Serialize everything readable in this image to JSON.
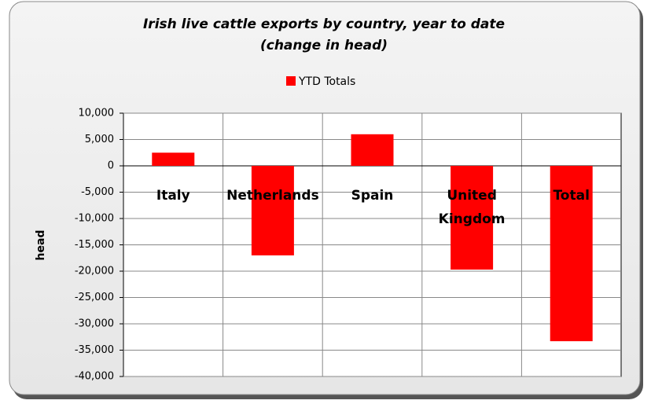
{
  "chart_data": {
    "type": "bar",
    "title": "Irish live cattle exports by country, year to date",
    "subtitle": "(change in head)",
    "y_label": "head",
    "categories": [
      "Italy",
      "Netherlands",
      "Spain",
      "United Kingdom",
      "Total"
    ],
    "series": [
      {
        "name": "YTD Totals",
        "color": "#ff0000",
        "values": [
          2500,
          -17000,
          6000,
          -19700,
          -33300
        ]
      }
    ],
    "ylim": [
      -40000,
      10000
    ],
    "yticks": [
      {
        "value": -40000,
        "label": "-40,000"
      },
      {
        "value": -35000,
        "label": "-35,000"
      },
      {
        "value": -30000,
        "label": "-30,000"
      },
      {
        "value": -25000,
        "label": "-25,000"
      },
      {
        "value": -20000,
        "label": "-20,000"
      },
      {
        "value": -15000,
        "label": "-15,000"
      },
      {
        "value": -10000,
        "label": "-10,000"
      },
      {
        "value": -5000,
        "label": "-5,000"
      },
      0,
      {
        "value": 5000,
        "label": "5,000"
      },
      {
        "value": 10000,
        "label": "10,000"
      }
    ],
    "grid": true,
    "legend": "top"
  }
}
